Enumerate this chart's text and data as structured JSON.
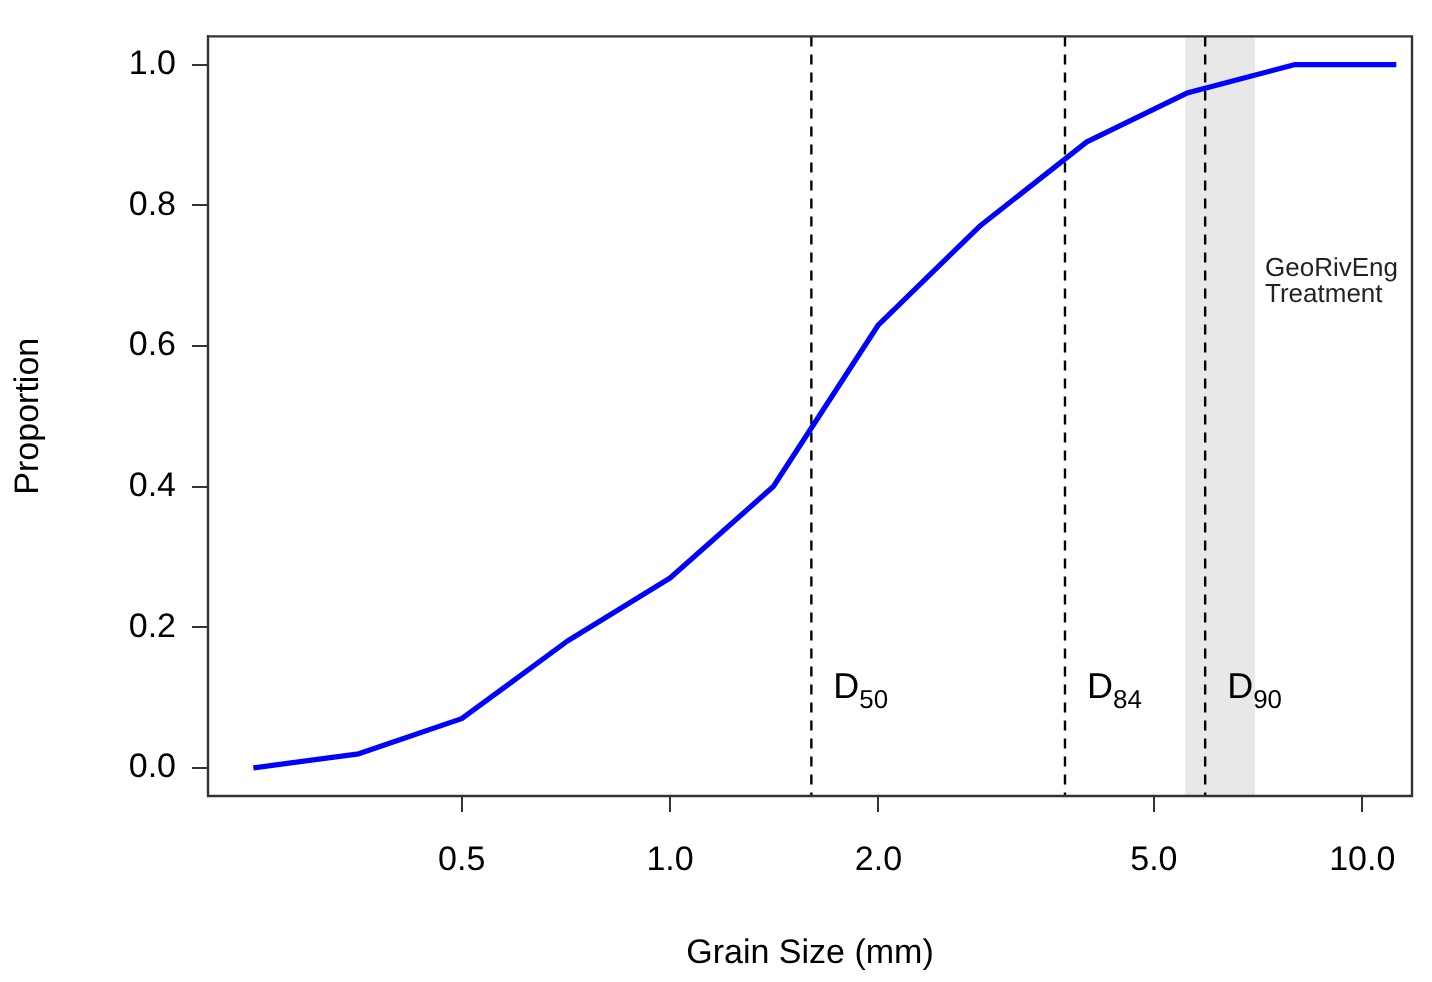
{
  "chart_data": {
    "type": "line",
    "xlabel": "Grain Size (mm)",
    "ylabel": "Proportion",
    "log": "x",
    "x": [
      0.25,
      0.355,
      0.5,
      0.71,
      1,
      1.41,
      2,
      2.8,
      4,
      5.6,
      8,
      11.2
    ],
    "series": [
      {
        "color": "#0000ff",
        "values": [
          0,
          0.02,
          0.07,
          0.18,
          0.27,
          0.4,
          0.63,
          0.77,
          0.89,
          0.96,
          1,
          1
        ]
      }
    ],
    "xlim": [
      0.215,
      11.8
    ],
    "xticks": [
      {
        "value": 0.5,
        "label": "0.5"
      },
      {
        "value": 1,
        "label": "1.0"
      },
      {
        "value": 2,
        "label": "2.0"
      },
      {
        "value": 5,
        "label": "5.0"
      },
      {
        "value": 10,
        "label": "10.0"
      }
    ],
    "ylim": [
      -0.04,
      1.04
    ],
    "yticks": [
      {
        "value": 0,
        "label": "0.0"
      },
      {
        "value": 0.2,
        "label": "0.2"
      },
      {
        "value": 0.4,
        "label": "0.4"
      },
      {
        "value": 0.6,
        "label": "0.6"
      },
      {
        "value": 0.8,
        "label": "0.8"
      },
      {
        "value": 1,
        "label": "1.0"
      }
    ],
    "ref_lines": [
      {
        "axis": "x",
        "value": 1.6,
        "label": "D$_{50}$",
        "color": "#000000",
        "line_style": "dashed"
      },
      {
        "axis": "x",
        "value": 3.72,
        "label": "D$_{84}$",
        "color": "#000000",
        "line_style": "dashed"
      },
      {
        "axis": "x",
        "value": 5.93,
        "label": "D$_{90}$",
        "color": "#000000",
        "line_style": "dashed"
      }
    ],
    "bands": [
      {
        "axis": "x",
        "from": 5.55,
        "to": 7.0,
        "label": "GeoRivEng Treatment",
        "color": "#e8e8e8"
      }
    ],
    "grid": false,
    "legend": false,
    "marker": "none",
    "line_style": "solid"
  }
}
